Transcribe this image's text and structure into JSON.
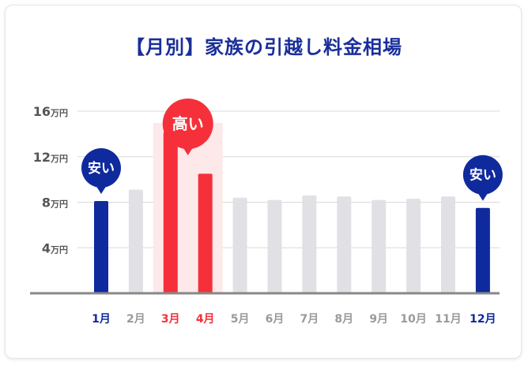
{
  "title": "【月別】家族の引越し料金相場",
  "chart_data": {
    "type": "bar",
    "title": "【月別】家族の引越し料金相場",
    "categories": [
      "1月",
      "2月",
      "3月",
      "4月",
      "5月",
      "6月",
      "7月",
      "8月",
      "9月",
      "10月",
      "11月",
      "12月"
    ],
    "values": [
      8.1,
      9.1,
      14.2,
      10.5,
      8.4,
      8.2,
      8.6,
      8.5,
      8.2,
      8.3,
      8.5,
      7.5
    ],
    "unit": "万円",
    "ylim": [
      0,
      16
    ],
    "yticks": [
      {
        "value": 4,
        "num": "4",
        "unit": "万円"
      },
      {
        "value": 8,
        "num": "8",
        "unit": "万円"
      },
      {
        "value": 12,
        "num": "12",
        "unit": "万円"
      },
      {
        "value": 16,
        "num": "16",
        "unit": "万円"
      }
    ],
    "grid": true,
    "highlight": {
      "cheap": [
        0,
        11
      ],
      "expensive": [
        2,
        3
      ]
    },
    "annotations": [
      {
        "text": "安い",
        "months": [
          0
        ],
        "kind": "cheap"
      },
      {
        "text": "高い",
        "months": [
          2,
          3
        ],
        "kind": "expensive"
      },
      {
        "text": "安い",
        "months": [
          11
        ],
        "kind": "cheap"
      }
    ],
    "colors": {
      "cheap": "#0f2a9c",
      "expensive": "#f5303a",
      "normal": "#e1e1e5",
      "axis": "#888888",
      "grid": "#d9d9d9",
      "highlight_band": "#fde8ea",
      "label_normal": "#9a9a9a",
      "tick_text": "#555555"
    }
  }
}
